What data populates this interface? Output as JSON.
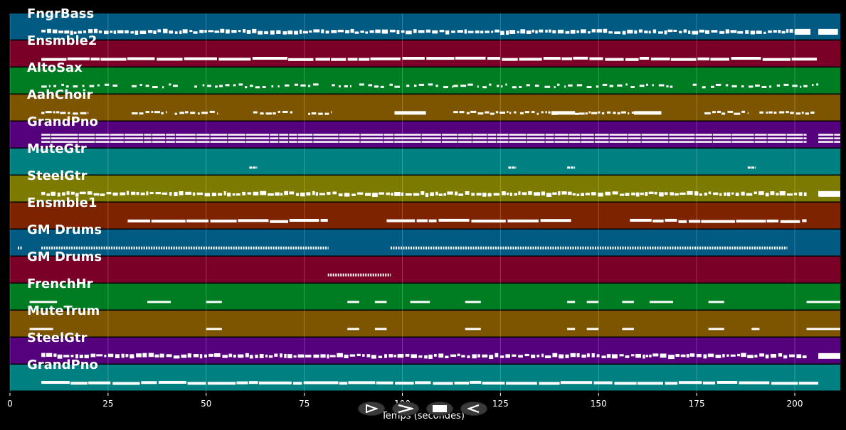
{
  "axis": {
    "title": "Temps (secondes)",
    "ticks": [
      0,
      25,
      50,
      75,
      100,
      125,
      150,
      175,
      200
    ],
    "max": 212
  },
  "controls": [
    {
      "name": "play-icon"
    },
    {
      "name": "forward-icon"
    },
    {
      "name": "stop-icon"
    },
    {
      "name": "back-icon"
    }
  ],
  "chart_data": {
    "type": "piano-roll",
    "xlabel": "Temps (secondes)",
    "xlim": [
      0,
      212
    ],
    "xticks": [
      0,
      25,
      50,
      75,
      100,
      125,
      150,
      175,
      200
    ],
    "grid": true,
    "tracks": [
      {
        "name": "FngrBass",
        "color": "#005a82",
        "pattern": "dense",
        "segments": [
          [
            8,
            200
          ],
          [
            200,
            204,
            "long"
          ],
          [
            206,
            211,
            "long"
          ]
        ]
      },
      {
        "name": "Ensmble2",
        "color": "#7a0028",
        "pattern": "bars",
        "segments": [
          [
            8,
            206
          ]
        ]
      },
      {
        "name": "AltoSax",
        "color": "#007d23",
        "pattern": "sparse",
        "segments": [
          [
            8,
            28
          ],
          [
            31,
            43
          ],
          [
            47,
            80
          ],
          [
            82,
            87
          ],
          [
            89,
            100
          ],
          [
            101,
            113
          ],
          [
            113,
            150
          ],
          [
            151,
            169
          ],
          [
            174,
            206
          ]
        ]
      },
      {
        "name": "AahChoir",
        "color": "#7d5500",
        "pattern": "mixed",
        "segments": [
          [
            8,
            20
          ],
          [
            31,
            40
          ],
          [
            42,
            53
          ],
          [
            62,
            72
          ],
          [
            76,
            82
          ],
          [
            98,
            106,
            "long"
          ],
          [
            113,
            129
          ],
          [
            130,
            145
          ],
          [
            138,
            144,
            "long"
          ],
          [
            145,
            159
          ],
          [
            159,
            166,
            "long"
          ],
          [
            177,
            188
          ],
          [
            191,
            205
          ]
        ]
      },
      {
        "name": "GrandPno",
        "color": "#55007d",
        "pattern": "chords",
        "segments": [
          [
            8,
            203
          ],
          [
            206,
            212
          ]
        ]
      },
      {
        "name": "MuteGtr",
        "color": "#008080",
        "pattern": "blips",
        "segments": [
          [
            61,
            63
          ],
          [
            127,
            129
          ],
          [
            142,
            144
          ],
          [
            188,
            190
          ]
        ]
      },
      {
        "name": "SteelGtr",
        "color": "#7d7a00",
        "pattern": "dense",
        "segments": [
          [
            8,
            203
          ],
          [
            206,
            212,
            "long"
          ]
        ]
      },
      {
        "name": "Ensmble1",
        "color": "#7d2300",
        "pattern": "bars",
        "segments": [
          [
            30,
            81
          ],
          [
            96,
            143
          ],
          [
            158,
            203
          ]
        ]
      },
      {
        "name": "GM Drums",
        "color": "#005a82",
        "pattern": "drums",
        "segments": [
          [
            2,
            3
          ],
          [
            8,
            81
          ],
          [
            97,
            198
          ]
        ]
      },
      {
        "name": "GM Drums",
        "color": "#7a0028",
        "pattern": "drums",
        "segments": [
          [
            81,
            97
          ]
        ]
      },
      {
        "name": "FrenchHr",
        "color": "#007d23",
        "pattern": "phrases",
        "segments": [
          [
            5,
            12
          ],
          [
            35,
            41
          ],
          [
            50,
            54
          ],
          [
            86,
            89
          ],
          [
            93,
            96
          ],
          [
            102,
            107
          ],
          [
            116,
            120
          ],
          [
            142,
            144
          ],
          [
            147,
            150
          ],
          [
            156,
            159
          ],
          [
            163,
            169
          ],
          [
            178,
            182
          ],
          [
            203,
            212
          ]
        ]
      },
      {
        "name": "MuteTrum",
        "color": "#7d5500",
        "pattern": "phrases",
        "segments": [
          [
            5,
            11
          ],
          [
            50,
            54
          ],
          [
            86,
            89
          ],
          [
            93,
            96
          ],
          [
            116,
            120
          ],
          [
            142,
            144
          ],
          [
            147,
            150
          ],
          [
            156,
            159
          ],
          [
            178,
            182
          ],
          [
            189,
            191
          ],
          [
            203,
            212
          ]
        ]
      },
      {
        "name": "SteelGtr",
        "color": "#55007d",
        "pattern": "dense",
        "segments": [
          [
            8,
            203
          ],
          [
            206,
            212,
            "long"
          ]
        ]
      },
      {
        "name": "GrandPno",
        "color": "#008080",
        "pattern": "bars",
        "segments": [
          [
            8,
            206
          ]
        ]
      }
    ]
  }
}
